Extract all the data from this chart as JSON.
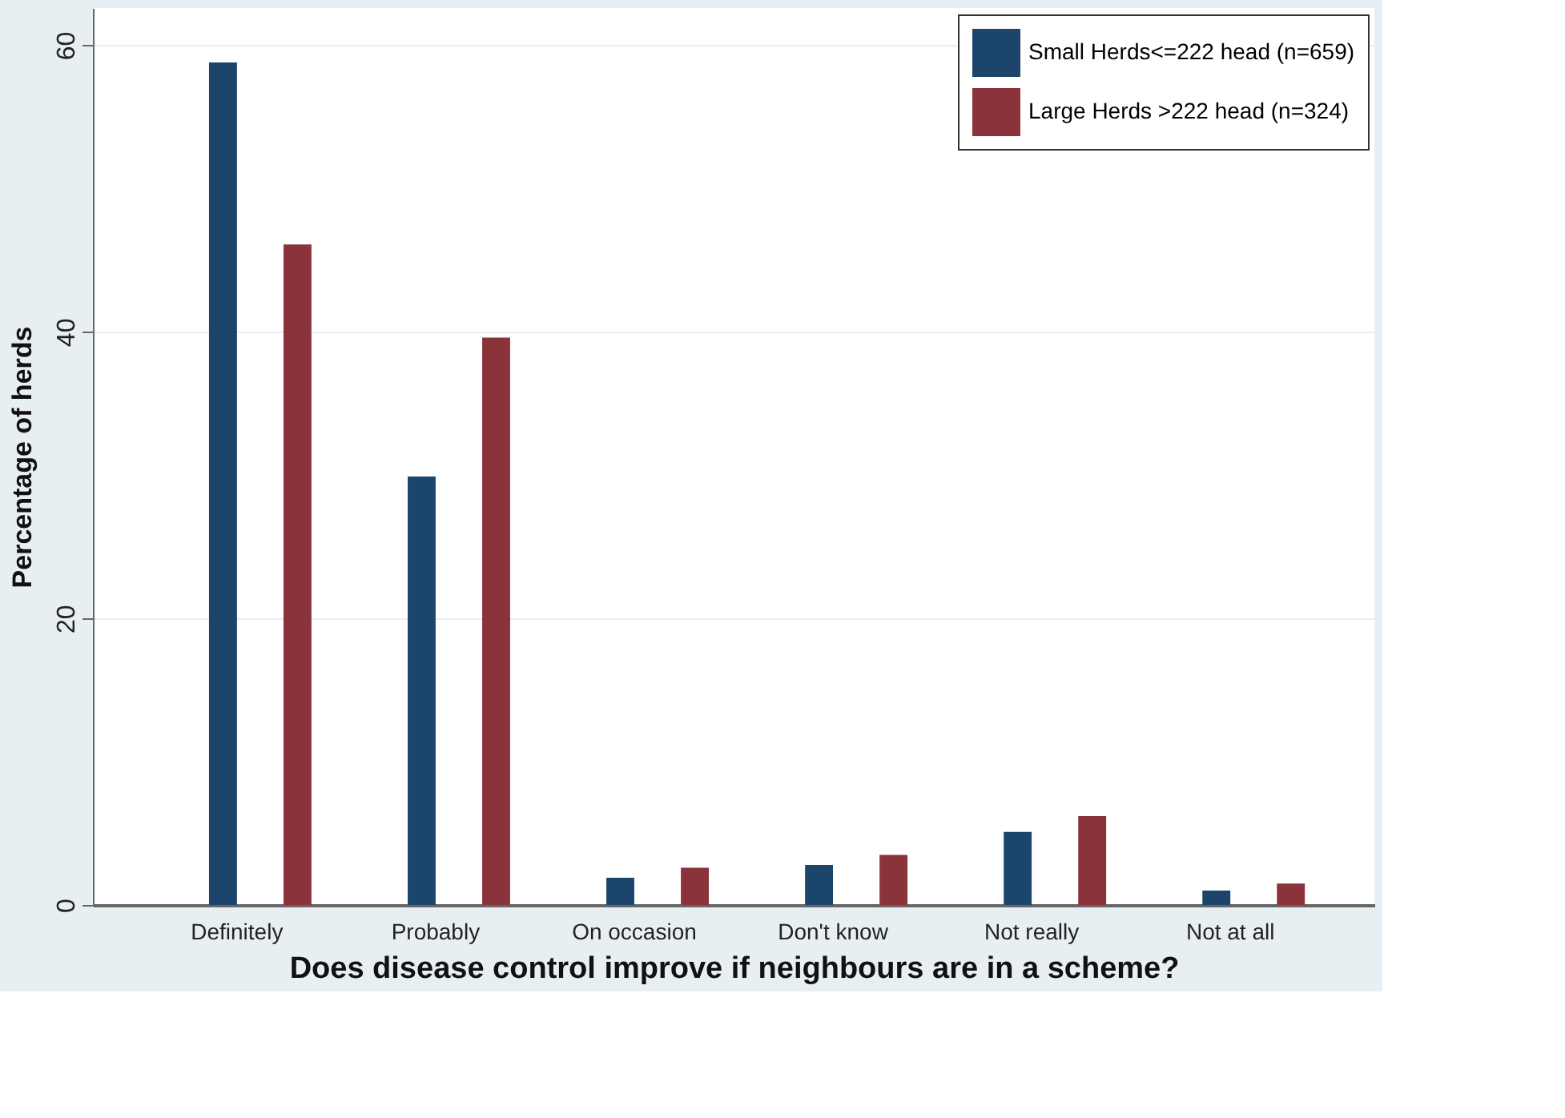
{
  "chart_data": {
    "type": "bar",
    "xlabel": "Does disease control improve if neighbours are in a scheme?",
    "ylabel": "Percentage of herds",
    "categories": [
      "Definitely",
      "Probably",
      "On occasion",
      "Don't know",
      "Not really",
      "Not at all"
    ],
    "series": [
      {
        "name": "Small Herds<=222 head (n=659)",
        "color": "#1b456b",
        "values": [
          58.8,
          29.9,
          1.9,
          2.8,
          5.1,
          1.0
        ]
      },
      {
        "name": "Large Herds >222 head (n=324)",
        "color": "#8b333b",
        "values": [
          46.1,
          39.6,
          2.6,
          3.5,
          6.2,
          1.5
        ]
      }
    ],
    "ylim": [
      0,
      62.6
    ],
    "yticks": [
      0,
      20,
      40,
      60
    ],
    "grid": "y",
    "legend": "top right"
  }
}
